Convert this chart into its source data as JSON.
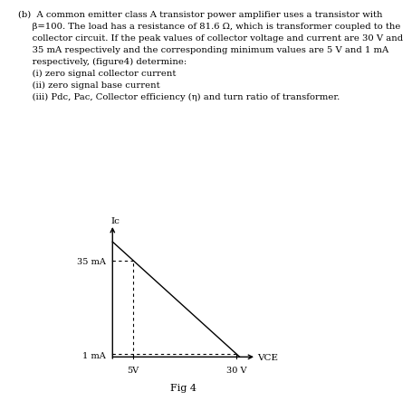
{
  "line1": "(b)  A common emitter class A transistor power amplifier uses a transistor with",
  "line2": "     β=100. The load has a resistance of 81.6 Ω, which is transformer coupled to the",
  "line3": "     collector circuit. If the peak values of collector voltage and current are 30 V and",
  "line4": "     35 mA respectively and the corresponding minimum values are 5 V and 1 mA",
  "line5": "     respectively, (figure4) determine:",
  "line6": "     (i) zero signal collector current",
  "line7": "     (ii) zero signal base current",
  "line8": "     (iii) Pdc, Pac, Collector efficiency (η) and turn ratio of transformer.",
  "fig_label": "Fig 4",
  "ic_label": "Ic",
  "vce_label": "VCE",
  "peak_current_mA": 35,
  "min_current_mA": 1,
  "peak_voltage_V": 30,
  "min_voltage_V": 5,
  "line_color": "#000000",
  "dashed_color": "#000000",
  "bg_color": "#ffffff",
  "text_fontsize": 7.2,
  "axis_label_fontsize": 7.5,
  "tick_label_fontsize": 7.0
}
